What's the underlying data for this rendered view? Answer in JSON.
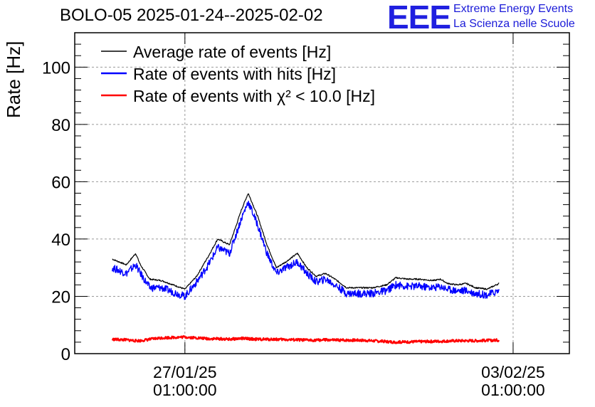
{
  "header": {
    "title": "BOLO-05 2025-01-24--2025-02-02"
  },
  "logo": {
    "mark": "EEE",
    "line1": "Extreme Energy Events",
    "line2": "La Scienza nelle Scuole",
    "color": "#2020e0"
  },
  "chart_data": {
    "type": "line",
    "title": "BOLO-05 2025-01-24--2025-02-02",
    "ylabel": "Rate [Hz]",
    "xlabel": "",
    "ylim": [
      0,
      112
    ],
    "yticks": [
      0,
      20,
      40,
      60,
      80,
      100
    ],
    "xlim": [
      -2.35,
      8.2
    ],
    "x_unit": "days relative to 27/01/25 01:00:00",
    "xticks": [
      {
        "x": 0,
        "line1": "27/01/25",
        "line2": "01:00:00"
      },
      {
        "x": 7,
        "line1": "03/02/25",
        "line2": "01:00:00"
      }
    ],
    "grid": true,
    "legend_position": "top-left",
    "x": [
      -1.55,
      -1.25,
      -1.05,
      -0.95,
      -0.75,
      -0.5,
      0,
      0.25,
      0.5,
      0.7,
      0.95,
      1.1,
      1.2,
      1.35,
      1.55,
      1.75,
      1.95,
      2.15,
      2.4,
      2.6,
      2.8,
      3,
      3.2,
      3.45,
      3.7,
      4.0,
      4.3,
      4.5,
      4.75,
      5.0,
      5.3,
      5.45,
      5.6,
      5.8,
      6.0,
      6.2,
      6.45,
      6.7
    ],
    "series": [
      {
        "name": "Average rate of events [Hz]",
        "color": "#000000",
        "values": [
          33,
          31,
          35,
          31,
          26,
          25.5,
          22.5,
          27,
          34,
          40,
          38,
          45,
          50,
          56,
          48,
          38,
          30,
          32,
          35,
          30,
          27,
          28,
          26,
          23,
          23,
          23,
          24,
          26.5,
          26,
          26,
          25.5,
          26,
          24.5,
          24,
          24.5,
          23,
          22.5,
          24.5
        ]
      },
      {
        "name": "Rate of events with hits [Hz]",
        "color": "#0000ff",
        "values": [
          30,
          28,
          31,
          28,
          23,
          23,
          20,
          25,
          31,
          37,
          35,
          42,
          47,
          53,
          45,
          35,
          28,
          30,
          32,
          28,
          25,
          26,
          24,
          21,
          21,
          21,
          22,
          24,
          23.5,
          23.5,
          23,
          23.5,
          22.5,
          22,
          22,
          21,
          20.5,
          22
        ]
      },
      {
        "name": "Rate of events with χ² < 10.0 [Hz]",
        "color": "#ff0000",
        "values": [
          5,
          4.8,
          4.5,
          4.5,
          5,
          5.5,
          5.8,
          5.5,
          5.2,
          5.2,
          5.0,
          5.2,
          5.3,
          5.2,
          5.0,
          5.0,
          5.0,
          4.9,
          4.8,
          4.7,
          4.7,
          4.8,
          4.7,
          4.7,
          4.7,
          4.5,
          4.2,
          4.0,
          4.1,
          4.2,
          4.3,
          4.3,
          4.4,
          4.5,
          4.5,
          4.5,
          4.6,
          4.7
        ]
      }
    ]
  }
}
